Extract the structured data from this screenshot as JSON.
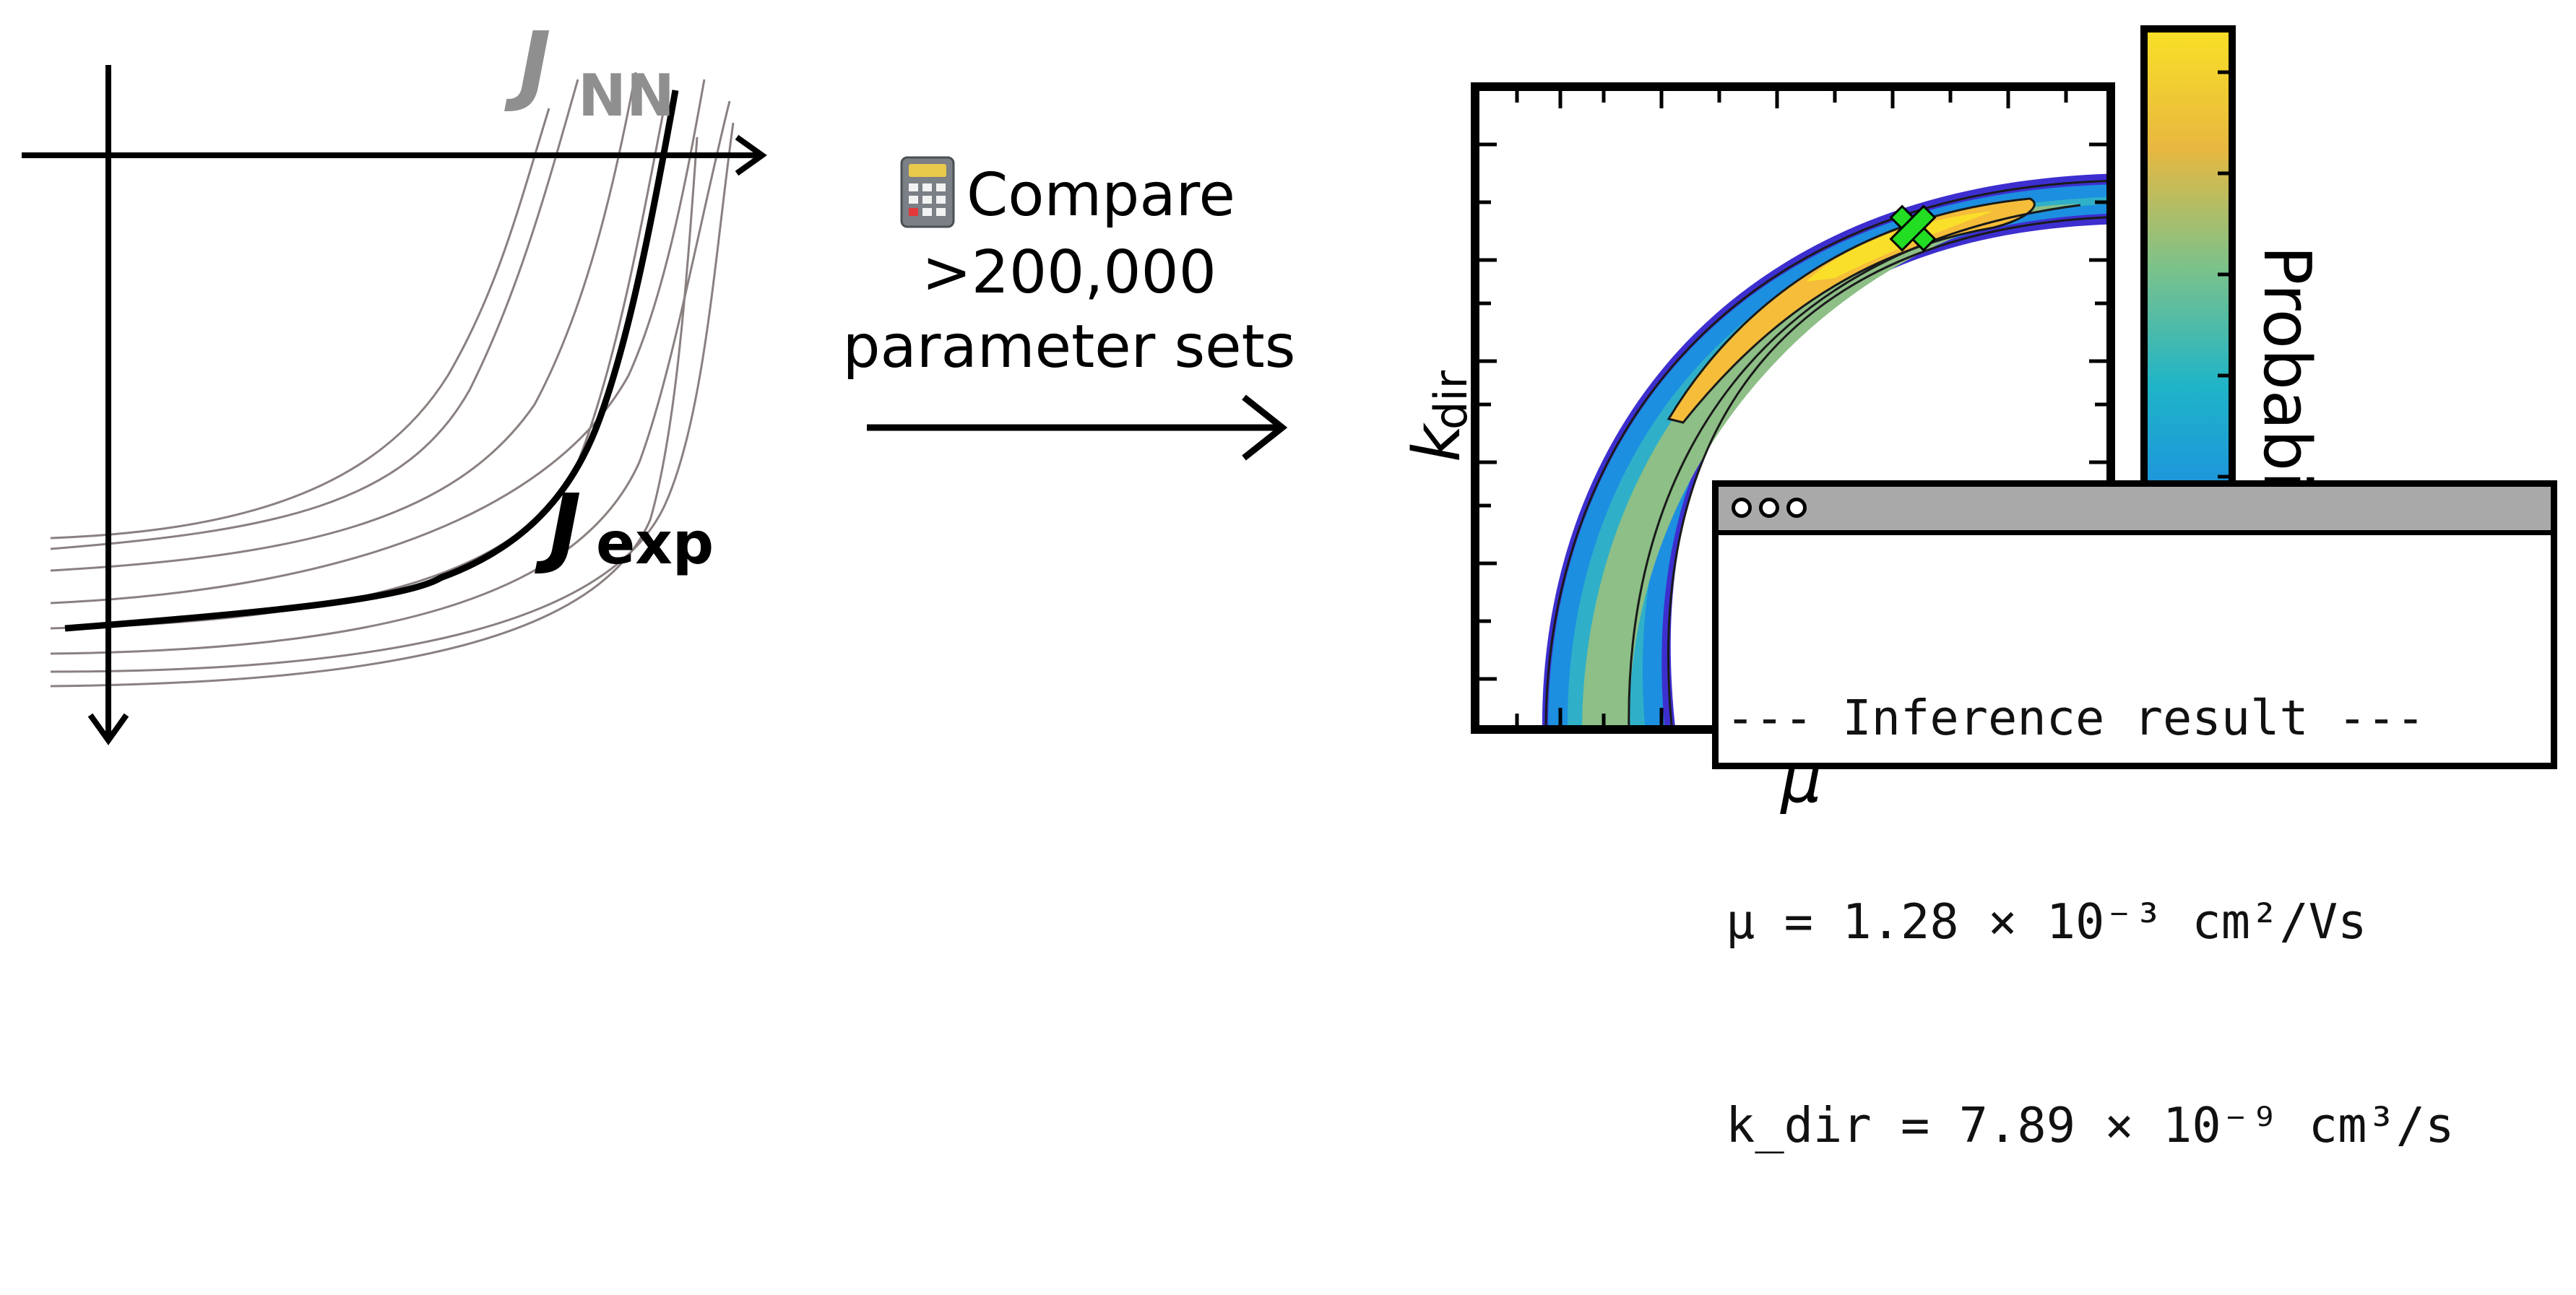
{
  "left_plot": {
    "label_nn_main": "J",
    "label_nn_sub": "NN",
    "label_exp_main": "J",
    "label_exp_sub": "exp"
  },
  "middle": {
    "icon": "calculator-icon",
    "line1": "Compare",
    "line2": ">200,000",
    "line3": "parameter sets"
  },
  "posterior_plot": {
    "ylabel_main": "k",
    "ylabel_sub": "dir",
    "xlabel": "μ",
    "colorbar_label": "Probability",
    "colormap": [
      "#3d1fcf",
      "#1c8fe0",
      "#1fb4c8",
      "#7cc28a",
      "#d8b84a",
      "#f7c93a",
      "#f9e026"
    ],
    "best_marker_color": "#22dd22"
  },
  "terminal": {
    "line1": "--- Inference result ---",
    "line2": "μ = 1.28 × 10⁻³ cm²/Vs",
    "line3": "k_dir = 7.89 × 10⁻⁹ cm³/s"
  }
}
